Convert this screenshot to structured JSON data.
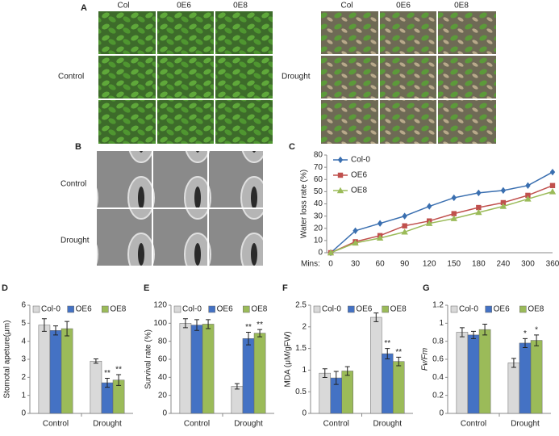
{
  "photos": {
    "A": {
      "label": "A",
      "left": {
        "columns": [
          "Col",
          "0E6",
          "0E8"
        ],
        "row_label": "Control"
      },
      "right": {
        "columns": [
          "Col",
          "0E6",
          "0E8"
        ],
        "row_label": "Drought"
      }
    },
    "B": {
      "label": "B",
      "rows": [
        "Control",
        "Drought"
      ]
    }
  },
  "chart_data": [
    {
      "panel": "C",
      "type": "line",
      "x_label": "Mins:",
      "y_label": "Water loss rate (%)",
      "categories": [
        "0",
        "30",
        "60",
        "90",
        "120",
        "150",
        "180",
        "240",
        "300",
        "360"
      ],
      "ylim": [
        0,
        80
      ],
      "yticks": [
        0,
        10,
        20,
        30,
        40,
        50,
        60,
        70,
        80
      ],
      "legend": "upper-left",
      "series": [
        {
          "name": "Col-0",
          "color": "#3a6fb0",
          "marker": "diamond",
          "values": [
            0,
            18,
            24,
            30,
            38,
            45,
            49,
            51,
            55,
            66
          ],
          "errors": [
            0,
            1,
            1,
            1.5,
            1.5,
            1.5,
            1.5,
            2,
            1.5,
            2
          ]
        },
        {
          "name": "OE6",
          "color": "#c0504d",
          "marker": "square",
          "values": [
            0,
            9,
            14,
            22,
            26,
            32,
            37,
            41,
            47,
            55
          ],
          "errors": [
            0,
            1,
            1,
            1,
            1,
            1.5,
            1.5,
            1.5,
            1.5,
            1.5
          ]
        },
        {
          "name": "OE8",
          "color": "#9bbb59",
          "marker": "triangle",
          "values": [
            0,
            8,
            12,
            17,
            24,
            28,
            33,
            38,
            44,
            50
          ],
          "errors": [
            0,
            1,
            1,
            1,
            1,
            1,
            1.5,
            1.5,
            1.5,
            1.5
          ]
        }
      ]
    },
    {
      "panel": "D",
      "type": "bar",
      "y_label": "Stomotal apeture(μm)",
      "categories": [
        "Control",
        "Drought"
      ],
      "ylim": [
        0,
        6
      ],
      "yticks": [
        0,
        1,
        2,
        3,
        4,
        5,
        6
      ],
      "legend": "top",
      "series": [
        {
          "name": "Col-0",
          "color": "#d9d9d9",
          "values": [
            4.9,
            2.9
          ],
          "errors": [
            0.35,
            0.12
          ],
          "labels": [
            null,
            null
          ]
        },
        {
          "name": "OE6",
          "color": "#4472c4",
          "values": [
            4.6,
            1.7
          ],
          "errors": [
            0.25,
            0.25
          ],
          "labels": [
            null,
            "**"
          ]
        },
        {
          "name": "OE8",
          "color": "#9bbb59",
          "values": [
            4.7,
            1.85
          ],
          "errors": [
            0.4,
            0.3
          ],
          "labels": [
            null,
            "**"
          ]
        }
      ]
    },
    {
      "panel": "E",
      "type": "bar",
      "y_label": "Survival rate (%)",
      "categories": [
        "Control",
        "Drought"
      ],
      "ylim": [
        0,
        120
      ],
      "yticks": [
        0,
        20,
        40,
        60,
        80,
        100,
        120
      ],
      "legend": "top",
      "series": [
        {
          "name": "Col-0",
          "color": "#d9d9d9",
          "values": [
            100,
            30
          ],
          "errors": [
            5,
            3
          ],
          "labels": [
            null,
            null
          ]
        },
        {
          "name": "OE6",
          "color": "#4472c4",
          "values": [
            98,
            83
          ],
          "errors": [
            6,
            7
          ],
          "labels": [
            null,
            "**"
          ]
        },
        {
          "name": "OE8",
          "color": "#9bbb59",
          "values": [
            99,
            89
          ],
          "errors": [
            5,
            4
          ],
          "labels": [
            null,
            "**"
          ]
        }
      ]
    },
    {
      "panel": "F",
      "type": "bar",
      "y_label": "MDA (μM/gFW)",
      "categories": [
        "Control",
        "Drought"
      ],
      "ylim": [
        0,
        2.5
      ],
      "yticks": [
        0,
        0.5,
        1,
        1.5,
        2,
        2.5
      ],
      "legend": "top",
      "series": [
        {
          "name": "Col-0",
          "color": "#d9d9d9",
          "values": [
            0.93,
            2.22
          ],
          "errors": [
            0.1,
            0.1
          ],
          "labels": [
            null,
            null
          ]
        },
        {
          "name": "OE6",
          "color": "#4472c4",
          "values": [
            0.82,
            1.38
          ],
          "errors": [
            0.15,
            0.12
          ],
          "labels": [
            null,
            "**"
          ]
        },
        {
          "name": "OE8",
          "color": "#9bbb59",
          "values": [
            0.98,
            1.2
          ],
          "errors": [
            0.1,
            0.1
          ],
          "labels": [
            null,
            "**"
          ]
        }
      ]
    },
    {
      "panel": "G",
      "type": "bar",
      "y_label": "Fv/Fm",
      "categories": [
        "Control",
        "Drought"
      ],
      "ylim": [
        0,
        1.2
      ],
      "yticks": [
        0,
        0.2,
        0.4,
        0.6,
        0.8,
        1,
        1.2
      ],
      "legend": "top",
      "series": [
        {
          "name": "Col-0",
          "color": "#d9d9d9",
          "values": [
            0.9,
            0.56
          ],
          "errors": [
            0.05,
            0.05
          ],
          "labels": [
            null,
            null
          ]
        },
        {
          "name": "OE6",
          "color": "#4472c4",
          "values": [
            0.87,
            0.78
          ],
          "errors": [
            0.04,
            0.05
          ],
          "labels": [
            null,
            "*"
          ]
        },
        {
          "name": "OE8",
          "color": "#9bbb59",
          "values": [
            0.93,
            0.81
          ],
          "errors": [
            0.06,
            0.06
          ],
          "labels": [
            null,
            "*"
          ]
        }
      ]
    }
  ]
}
